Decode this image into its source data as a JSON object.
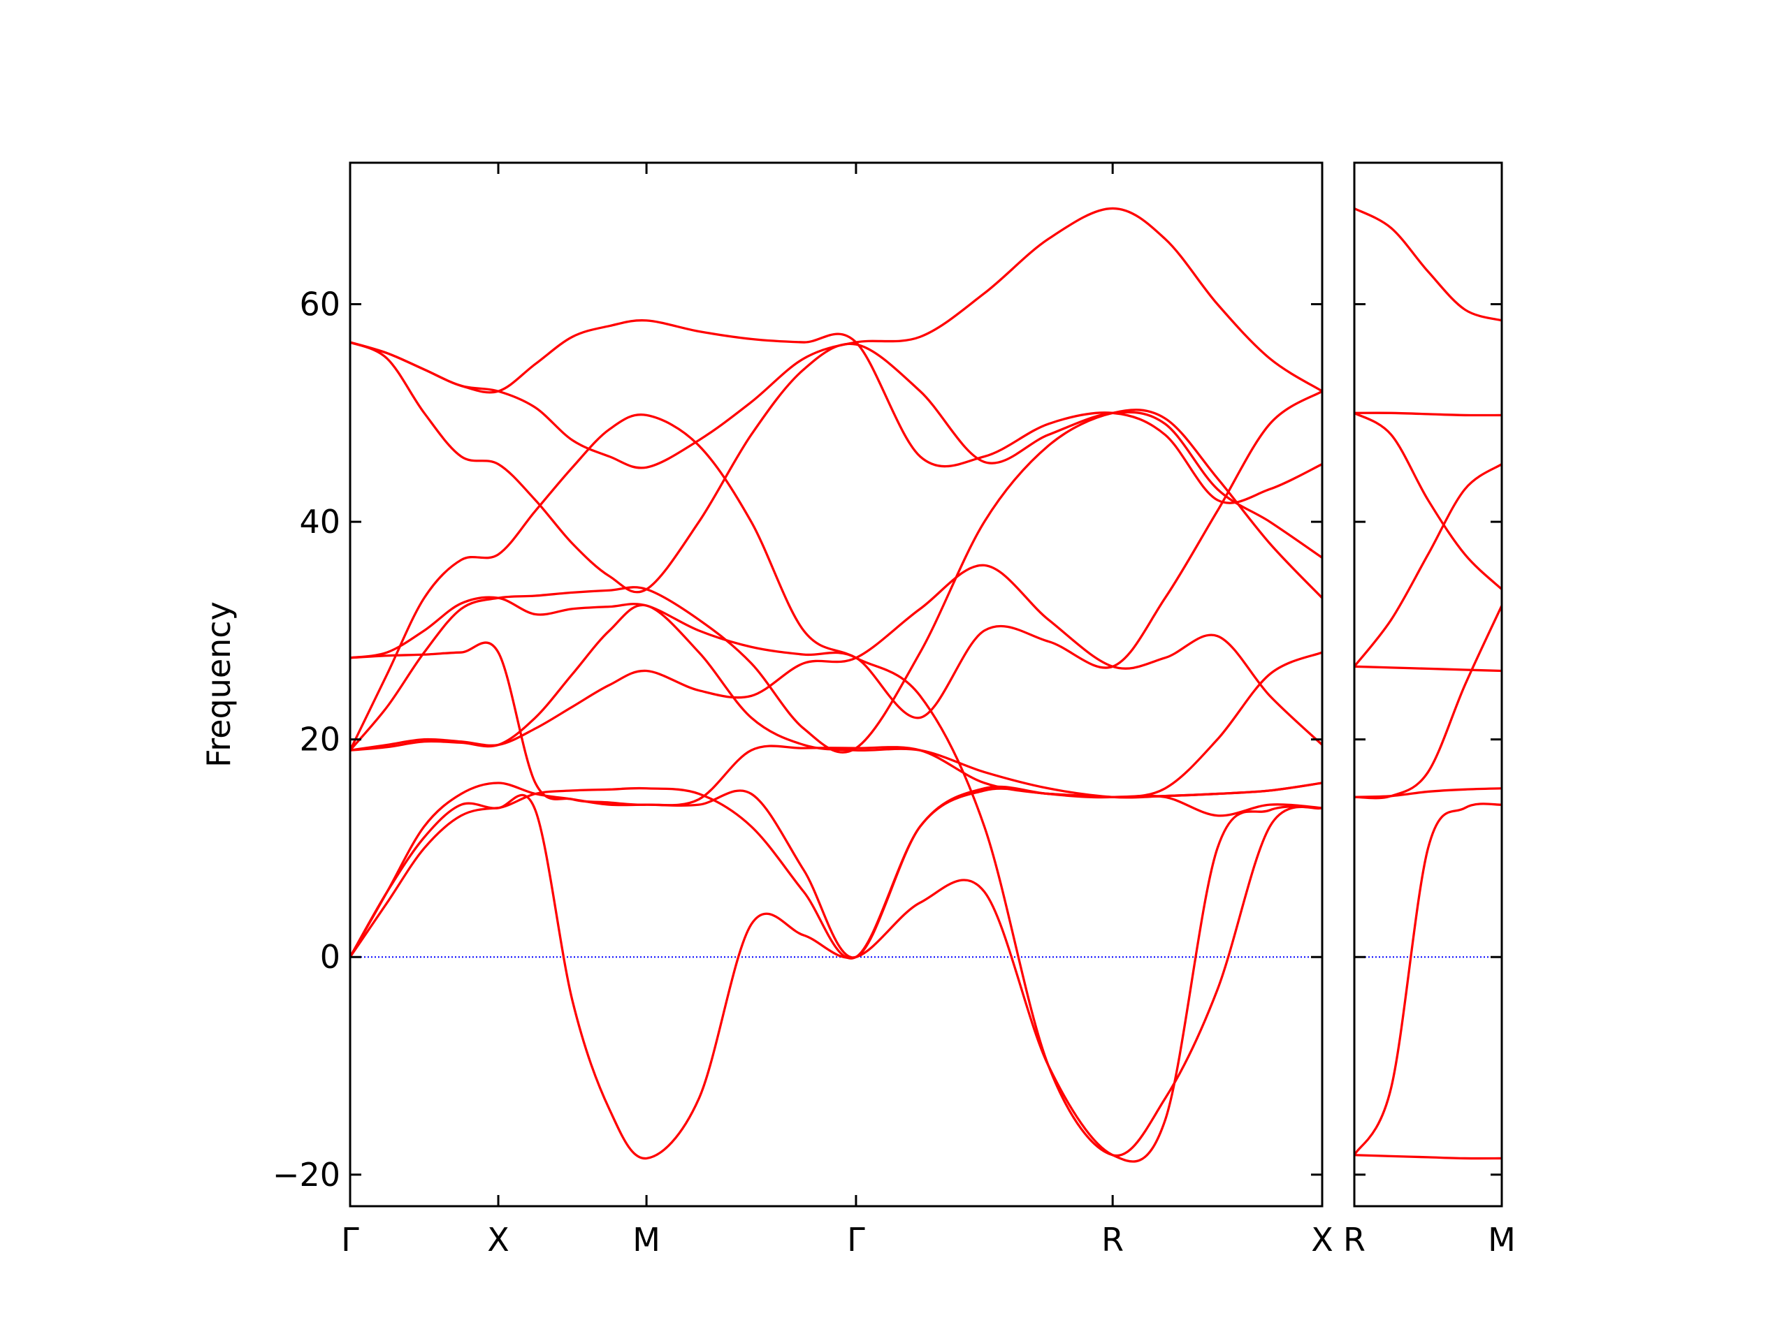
{
  "chart_data": [
    {
      "type": "line",
      "ylabel": "Frequency",
      "x": [
        0,
        0.25,
        0.5,
        0.75,
        1,
        1.25,
        1.5,
        1.75,
        2,
        2.354,
        2.707,
        3.061,
        3.414,
        3.847,
        4.28,
        4.713,
        5.146,
        5.5,
        5.853,
        6.207,
        6.56
      ],
      "xlim": [
        0,
        6.56
      ],
      "xticks": [
        {
          "value": 0,
          "label": "Γ"
        },
        {
          "value": 1,
          "label": "X"
        },
        {
          "value": 2,
          "label": "M"
        },
        {
          "value": 3.414,
          "label": "Γ"
        },
        {
          "value": 5.146,
          "label": "R"
        },
        {
          "value": 6.56,
          "label": "X"
        }
      ],
      "ylim": [
        -22.9,
        73
      ],
      "yticks": [
        {
          "value": -20,
          "label": "−20"
        },
        0,
        20,
        40,
        60
      ],
      "yticklabels": true,
      "reference_line": {
        "y": 0,
        "color": "#0000ff",
        "style": "dotted"
      },
      "series": [
        {
          "color": "#ff0000",
          "values": [
            0,
            5,
            10,
            13,
            13.7,
            13.5,
            -4,
            -14,
            -18.5,
            -13,
            3,
            2,
            0,
            5,
            6,
            -10,
            -18.2,
            -15,
            10,
            13.5,
            13.7
          ]
        },
        {
          "color": "#ff0000",
          "values": [
            0,
            6,
            12,
            15,
            16,
            15,
            14.5,
            14,
            14,
            14,
            15,
            8,
            0,
            12,
            15.5,
            15,
            14.7,
            14.7,
            13,
            14,
            13.7
          ]
        },
        {
          "color": "#ff0000",
          "values": [
            0,
            6,
            11,
            14,
            13.7,
            15,
            15.3,
            15.4,
            15.5,
            15,
            12,
            6,
            0,
            12,
            15.3,
            15,
            14.7,
            14.8,
            15,
            15.3,
            16
          ]
        },
        {
          "color": "#ff0000",
          "values": [
            19,
            19.5,
            20,
            19.8,
            19.5,
            21,
            23,
            25,
            26.3,
            24.5,
            24,
            27,
            27.5,
            32,
            36,
            31,
            26.7,
            27.5,
            29.5,
            24,
            19.5
          ]
        },
        {
          "color": "#ff0000",
          "values": [
            19,
            19.3,
            19.8,
            19.7,
            19.5,
            22,
            26,
            30,
            32.3,
            28,
            22,
            19.5,
            19,
            19,
            17,
            15.5,
            14.7,
            14.8,
            15,
            15.3,
            16
          ]
        },
        {
          "color": "#ff0000",
          "values": [
            27.5,
            27.7,
            27.8,
            28,
            28,
            16,
            14.5,
            14.2,
            14,
            14.5,
            19,
            19.2,
            19.2,
            19,
            16,
            15,
            14.7,
            15.5,
            20,
            26,
            28
          ]
        },
        {
          "color": "#ff0000",
          "values": [
            19,
            23,
            28,
            32,
            33,
            33.2,
            33.5,
            33.7,
            33.8,
            31,
            27,
            21,
            19.2,
            28,
            40,
            47,
            50,
            49.5,
            44,
            38,
            33
          ]
        },
        {
          "color": "#ff0000",
          "values": [
            19,
            26,
            33,
            36.5,
            37,
            41,
            45,
            48.5,
            49.8,
            47,
            40,
            30,
            27.5,
            24,
            12,
            -10,
            -18.2,
            -13,
            -3,
            12,
            13.7
          ]
        },
        {
          "color": "#ff0000",
          "values": [
            56.5,
            55,
            50,
            46,
            45.3,
            42,
            38,
            35,
            33.8,
            40,
            48,
            54,
            56.3,
            52,
            45.5,
            48,
            50,
            49,
            43,
            40,
            36.7
          ]
        },
        {
          "color": "#ff0000",
          "values": [
            56.5,
            55.5,
            54,
            52.5,
            52,
            50.5,
            47.5,
            46,
            45,
            47.5,
            51,
            55,
            56.5,
            57,
            61,
            66,
            68.8,
            66,
            60,
            55,
            52
          ]
        },
        {
          "color": "#ff0000",
          "values": [
            56.5,
            55.5,
            54,
            52.5,
            52,
            54.5,
            57,
            58,
            58.5,
            57.5,
            56.8,
            56.5,
            56.5,
            46,
            46,
            49,
            50,
            48,
            42,
            43,
            45.3
          ]
        },
        {
          "color": "#ff0000",
          "values": [
            27.5,
            28,
            30,
            32.5,
            33,
            31.5,
            32,
            32.2,
            32.3,
            30,
            28.5,
            27.8,
            27.5,
            22,
            30,
            29,
            26.7,
            33,
            41,
            49,
            52
          ]
        }
      ]
    },
    {
      "type": "line",
      "x": [
        0,
        0.25,
        0.5,
        0.75,
        1
      ],
      "xlim": [
        0,
        1
      ],
      "xticks": [
        {
          "value": 0,
          "label": "R"
        },
        {
          "value": 1,
          "label": "M"
        }
      ],
      "ylim": [
        -22.9,
        73
      ],
      "yticks": [
        -20,
        0,
        20,
        40,
        60
      ],
      "yticklabels": false,
      "reference_line": {
        "y": 0,
        "color": "#0000ff",
        "style": "dotted"
      },
      "series": [
        {
          "color": "#ff0000",
          "values": [
            -18.2,
            -18.3,
            -18.4,
            -18.5,
            -18.5
          ]
        },
        {
          "color": "#ff0000",
          "values": [
            -18.2,
            -12,
            10,
            13.7,
            14
          ]
        },
        {
          "color": "#ff0000",
          "values": [
            14.7,
            14.8,
            15.2,
            15.4,
            15.5
          ]
        },
        {
          "color": "#ff0000",
          "values": [
            14.7,
            14.8,
            17,
            25,
            32.3
          ]
        },
        {
          "color": "#ff0000",
          "values": [
            26.7,
            26.6,
            26.5,
            26.4,
            26.3
          ]
        },
        {
          "color": "#ff0000",
          "values": [
            26.7,
            31,
            37,
            43,
            45.3
          ]
        },
        {
          "color": "#ff0000",
          "values": [
            50,
            48,
            42,
            37,
            33.8
          ]
        },
        {
          "color": "#ff0000",
          "values": [
            50,
            50,
            49.9,
            49.8,
            49.8
          ]
        },
        {
          "color": "#ff0000",
          "values": [
            68.8,
            67,
            63,
            59.5,
            58.5
          ]
        }
      ]
    }
  ]
}
